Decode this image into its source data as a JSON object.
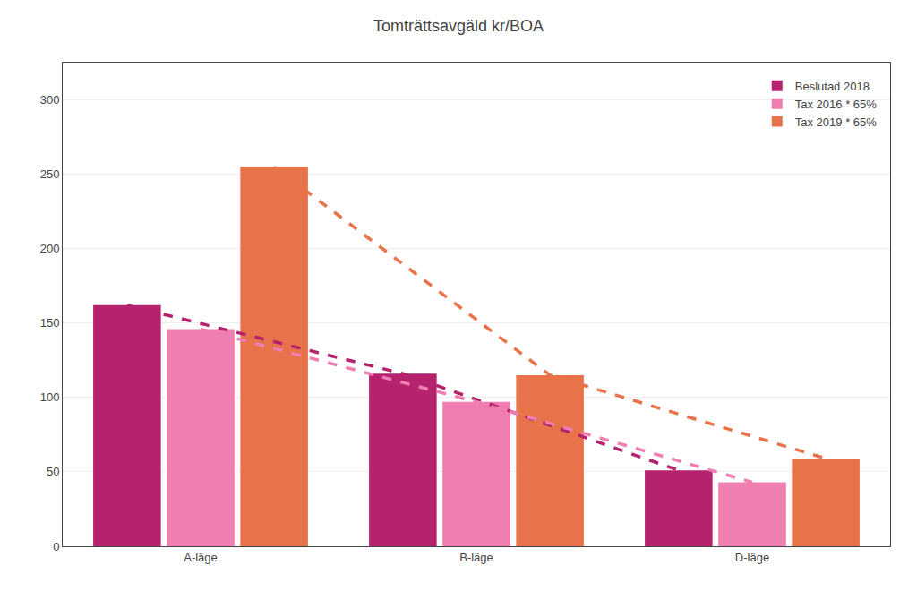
{
  "chart_data": {
    "type": "bar",
    "title": "Tomträttsavgäld kr/BOA",
    "categories": [
      "A-läge",
      "B-läge",
      "D-läge"
    ],
    "series": [
      {
        "name": "Beslutad 2018",
        "color": "#B5226E",
        "values": [
          162,
          116,
          51
        ],
        "line_style": "dashed"
      },
      {
        "name": "Tax 2016 * 65%",
        "color": "#F07EB0",
        "values": [
          146,
          97,
          43
        ],
        "line_style": "dashed"
      },
      {
        "name": "Tax 2019 * 65%",
        "color": "#E8724A",
        "values": [
          255,
          115,
          59
        ],
        "line_style": "dashed"
      }
    ],
    "ylim": [
      0,
      325
    ],
    "yticks": [
      0,
      50,
      100,
      150,
      200,
      250,
      300
    ],
    "grid": true,
    "legend": "upper right"
  }
}
